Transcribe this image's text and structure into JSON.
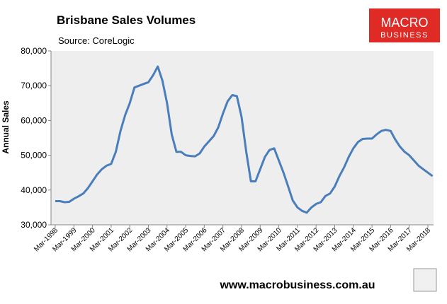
{
  "chart_data": {
    "type": "line",
    "title": "Brisbane Sales Volumes",
    "subtitle": "Source: CoreLogic",
    "y_label": "Annual Sales",
    "branding": {
      "logo_top": "MACRO",
      "logo_bottom": "BUSINESS",
      "url": "www.macrobusiness.com.au"
    },
    "categories": [
      "Mar-1998",
      null,
      null,
      null,
      "Mar-1999",
      null,
      null,
      null,
      "Mar-2000",
      null,
      null,
      null,
      "Mar-2001",
      null,
      null,
      null,
      "Mar-2002",
      null,
      null,
      null,
      "Mar-2003",
      null,
      null,
      null,
      "Mar-2004",
      null,
      null,
      null,
      "Mar-2005",
      null,
      null,
      null,
      "Mar-2006",
      null,
      null,
      null,
      "Mar-2007",
      null,
      null,
      null,
      "Mar-2008",
      null,
      null,
      null,
      "Mar-2009",
      null,
      null,
      null,
      "Mar-2010",
      null,
      null,
      null,
      "Mar-2011",
      null,
      null,
      null,
      "Mar-2012",
      null,
      null,
      null,
      "Mar-2013",
      null,
      null,
      null,
      "Mar-2014",
      null,
      null,
      null,
      "Mar-2015",
      null,
      null,
      null,
      "Mar-2016",
      null,
      null,
      null,
      "Mar-2017",
      null,
      null,
      null,
      "Mar-2018",
      null
    ],
    "series": [
      {
        "name": "Annual Sales",
        "color": "#4a7ebb",
        "values": [
          36800,
          36800,
          36500,
          36600,
          37500,
          38200,
          39000,
          40500,
          42500,
          44500,
          46000,
          47000,
          47500,
          51000,
          57000,
          61500,
          65000,
          69500,
          70000,
          70500,
          71000,
          73000,
          75500,
          71500,
          65000,
          56000,
          51000,
          51000,
          50000,
          49800,
          49700,
          50500,
          52500,
          54000,
          55500,
          58000,
          62000,
          65500,
          67300,
          67000,
          61000,
          51000,
          42500,
          42500,
          46000,
          49500,
          51500,
          52000,
          48500,
          45000,
          41000,
          37000,
          35000,
          34000,
          33500,
          35000,
          36000,
          36500,
          38300,
          39000,
          41000,
          44000,
          46500,
          49500,
          52000,
          53800,
          54700,
          54800,
          54800,
          56000,
          57000,
          57300,
          57000,
          54500,
          52500,
          51000,
          50000,
          48500,
          47000,
          46000,
          45000,
          44000
        ]
      }
    ],
    "ylim": [
      30000,
      80000
    ],
    "yticks": [
      {
        "value": 30000,
        "label": "30,000"
      },
      {
        "value": 40000,
        "label": "40,000"
      },
      {
        "value": 50000,
        "label": "50,000"
      },
      {
        "value": 60000,
        "label": "60,000"
      },
      {
        "value": 70000,
        "label": "70,000"
      },
      {
        "value": 80000,
        "label": "80,000"
      }
    ],
    "grid": false,
    "legend": false
  }
}
